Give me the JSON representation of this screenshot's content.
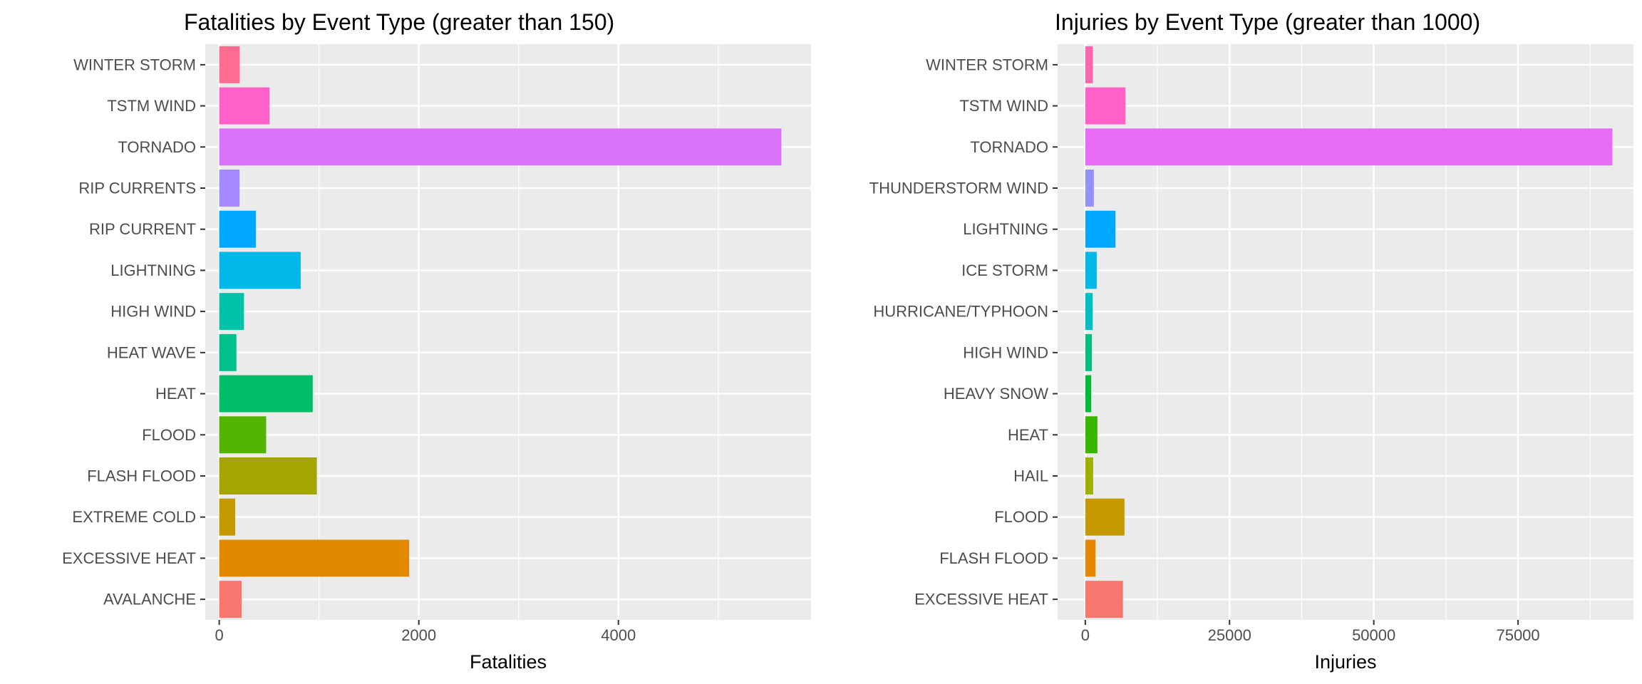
{
  "chart_data": [
    {
      "type": "bar",
      "orientation": "horizontal",
      "title": "Fatalities by Event Type (greater than 150)",
      "xlabel": "Fatalities",
      "ylabel": "",
      "xlim": [
        -140,
        5930
      ],
      "xticks": [
        0,
        2000,
        4000
      ],
      "xtick_labels": [
        "0",
        "2000",
        "4000"
      ],
      "grid": true,
      "legend": "none",
      "categories": [
        "WINTER STORM",
        "TSTM WIND",
        "TORNADO",
        "RIP CURRENTS",
        "RIP CURRENT",
        "LIGHTNING",
        "HIGH WIND",
        "HEAT WAVE",
        "HEAT",
        "FLOOD",
        "FLASH FLOOD",
        "EXTREME COLD",
        "EXCESSIVE HEAT",
        "AVALANCHE"
      ],
      "values": [
        206,
        504,
        5633,
        204,
        368,
        816,
        248,
        172,
        937,
        470,
        978,
        160,
        1903,
        224
      ],
      "colors": [
        "#FF6C91",
        "#FF61C9",
        "#DB72FB",
        "#A58AFF",
        "#00A9FF",
        "#00B8E7",
        "#00C1AA",
        "#00C08B",
        "#00BE67",
        "#53B400",
        "#A3A500",
        "#C49A00",
        "#E38900",
        "#F8766D"
      ]
    },
    {
      "type": "bar",
      "orientation": "horizontal",
      "title": "Injuries by Event Type (greater than 1000)",
      "xlabel": "Injuries",
      "ylabel": "",
      "xlim": [
        -4800,
        95000
      ],
      "xticks": [
        0,
        25000,
        50000,
        75000
      ],
      "xtick_labels": [
        "0",
        "25000",
        "50000",
        "75000"
      ],
      "grid": true,
      "legend": "none",
      "categories": [
        "WINTER STORM",
        "TSTM WIND",
        "TORNADO",
        "THUNDERSTORM WIND",
        "LIGHTNING",
        "ICE STORM",
        "HURRICANE/TYPHOON",
        "HIGH WIND",
        "HEAVY SNOW",
        "HEAT",
        "HAIL",
        "FLOOD",
        "FLASH FLOOD",
        "EXCESSIVE HEAT"
      ],
      "values": [
        1321,
        6957,
        91346,
        1488,
        5230,
        1975,
        1275,
        1137,
        1021,
        2100,
        1361,
        6789,
        1777,
        6525
      ],
      "colors": [
        "#FF65AC",
        "#FF61C9",
        "#E76BF3",
        "#9590FF",
        "#00A9FF",
        "#00B8E7",
        "#00BFC4",
        "#00BF7D",
        "#00BA38",
        "#39B600",
        "#9DB000",
        "#C49A00",
        "#E58700",
        "#F8766D"
      ]
    }
  ]
}
